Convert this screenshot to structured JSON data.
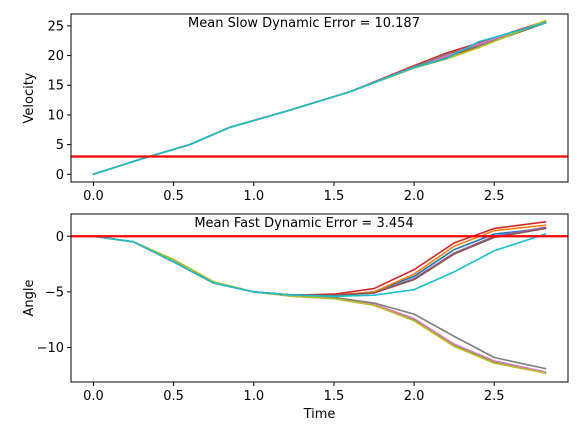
{
  "chart_data": [
    {
      "type": "line",
      "annotation": "Mean Slow Dynamic Error = 10.187",
      "xlabel": "",
      "ylabel": "Velocity",
      "xlim": [
        -0.14,
        2.96
      ],
      "ylim": [
        -1.3,
        27.0
      ],
      "xticks": [
        "0.0",
        "0.5",
        "1.0",
        "1.5",
        "2.0",
        "2.5"
      ],
      "yticks": [
        "0",
        "5",
        "10",
        "15",
        "20",
        "25"
      ],
      "reference_line": {
        "y": 3.0,
        "color": "#ff0000"
      },
      "series": [
        {
          "color": "#1f77b4",
          "x": [
            0,
            0.3,
            0.6,
            0.85,
            1.2,
            1.6,
            2.0,
            2.2,
            2.4,
            2.82
          ],
          "y": [
            0,
            2.6,
            5.0,
            7.9,
            10.6,
            13.9,
            18.0,
            19.6,
            21.7,
            25.6
          ]
        },
        {
          "color": "#ff7f0e",
          "x": [
            0,
            0.3,
            0.6,
            0.85,
            1.2,
            1.6,
            2.0,
            2.2,
            2.4,
            2.82
          ],
          "y": [
            0,
            2.6,
            5.0,
            7.9,
            10.6,
            13.9,
            17.9,
            19.5,
            21.4,
            25.7
          ]
        },
        {
          "color": "#2ca02c",
          "x": [
            0,
            0.3,
            0.6,
            0.85,
            1.2,
            1.6,
            2.0,
            2.2,
            2.4,
            2.82
          ],
          "y": [
            0,
            2.6,
            5.0,
            7.9,
            10.6,
            13.9,
            18.2,
            20.1,
            21.5,
            25.5
          ]
        },
        {
          "color": "#d62728",
          "x": [
            0,
            0.3,
            0.6,
            0.85,
            1.2,
            1.6,
            2.0,
            2.2,
            2.4,
            2.82
          ],
          "y": [
            0,
            2.6,
            5.0,
            7.9,
            10.6,
            13.9,
            18.3,
            20.4,
            22.1,
            25.8
          ]
        },
        {
          "color": "#9467bd",
          "x": [
            0,
            0.3,
            0.6,
            0.85,
            1.2,
            1.6,
            2.0,
            2.2,
            2.4,
            2.82
          ],
          "y": [
            0,
            2.6,
            5.0,
            7.9,
            10.6,
            13.9,
            18.1,
            20.0,
            21.8,
            25.6
          ]
        },
        {
          "color": "#8c564b",
          "x": [
            0,
            0.3,
            0.6,
            0.85,
            1.2,
            1.6,
            2.0,
            2.2,
            2.4,
            2.82
          ],
          "y": [
            0,
            2.6,
            5.0,
            7.9,
            10.6,
            13.9,
            18.0,
            19.8,
            21.6,
            25.5
          ]
        },
        {
          "color": "#e377c2",
          "x": [
            0,
            0.3,
            0.6,
            0.85,
            1.2,
            1.6,
            2.0,
            2.2,
            2.4,
            2.82
          ],
          "y": [
            0,
            2.6,
            5.0,
            7.9,
            10.6,
            13.9,
            18.1,
            19.9,
            21.9,
            25.7
          ]
        },
        {
          "color": "#7f7f7f",
          "x": [
            0,
            0.3,
            0.6,
            0.85,
            1.2,
            1.6,
            2.0,
            2.2,
            2.4,
            2.82
          ],
          "y": [
            0,
            2.6,
            5.0,
            7.9,
            10.6,
            13.9,
            18.1,
            20.2,
            21.6,
            25.6
          ]
        },
        {
          "color": "#bcbd22",
          "x": [
            0,
            0.3,
            0.6,
            0.85,
            1.2,
            1.6,
            2.0,
            2.2,
            2.4,
            2.82
          ],
          "y": [
            0,
            2.6,
            5.0,
            7.9,
            10.6,
            13.9,
            17.9,
            19.4,
            21.3,
            25.9
          ]
        },
        {
          "color": "#17becf",
          "x": [
            0,
            0.3,
            0.6,
            0.85,
            1.2,
            1.6,
            2.0,
            2.2,
            2.4,
            2.82
          ],
          "y": [
            0,
            2.6,
            5.0,
            7.9,
            10.6,
            13.9,
            18.0,
            19.5,
            22.3,
            25.5
          ]
        }
      ]
    },
    {
      "type": "line",
      "annotation": "Mean Fast Dynamic Error = 3.454",
      "xlabel": "Time",
      "ylabel": "Angle",
      "xlim": [
        -0.14,
        2.96
      ],
      "ylim": [
        -13.1,
        2.0
      ],
      "xticks": [
        "0.0",
        "0.5",
        "1.0",
        "1.5",
        "2.0",
        "2.5"
      ],
      "yticks": [
        "0",
        "−5",
        "−10"
      ],
      "reference_line": {
        "y": 0.0,
        "color": "#ff0000"
      },
      "series": [
        {
          "color": "#1f77b4",
          "x": [
            0,
            0.25,
            0.5,
            0.75,
            1.0,
            1.25,
            1.5,
            1.75,
            2.0,
            2.25,
            2.5,
            2.82
          ],
          "y": [
            0,
            -0.5,
            -2.3,
            -4.2,
            -5.0,
            -5.3,
            -5.3,
            -5.0,
            -3.6,
            -1.2,
            0.2,
            0.7
          ]
        },
        {
          "color": "#ff7f0e",
          "x": [
            0,
            0.25,
            0.5,
            0.75,
            1.0,
            1.25,
            1.5,
            1.75,
            2.0,
            2.25,
            2.5,
            2.82
          ],
          "y": [
            0,
            -0.5,
            -2.3,
            -4.2,
            -5.0,
            -5.3,
            -5.3,
            -5.0,
            -3.4,
            -0.9,
            0.5,
            1.0
          ]
        },
        {
          "color": "#2ca02c",
          "x": [
            0,
            0.25,
            0.5,
            0.75,
            1.0,
            1.25,
            1.5,
            1.75,
            2.0,
            2.25,
            2.5,
            2.82
          ],
          "y": [
            0,
            -0.5,
            -2.1,
            -4.1,
            -5.0,
            -5.4,
            -5.6,
            -6.2,
            -7.5,
            -9.8,
            -11.3,
            -12.3
          ]
        },
        {
          "color": "#d62728",
          "x": [
            0,
            0.25,
            0.5,
            0.75,
            1.0,
            1.25,
            1.5,
            1.75,
            2.0,
            2.25,
            2.5,
            2.82
          ],
          "y": [
            0,
            -0.5,
            -2.3,
            -4.2,
            -5.0,
            -5.3,
            -5.2,
            -4.7,
            -3.0,
            -0.6,
            0.7,
            1.3
          ]
        },
        {
          "color": "#9467bd",
          "x": [
            0,
            0.25,
            0.5,
            0.75,
            1.0,
            1.25,
            1.5,
            1.75,
            2.0,
            2.25,
            2.5,
            2.82
          ],
          "y": [
            0,
            -0.5,
            -2.3,
            -4.2,
            -5.0,
            -5.3,
            -5.3,
            -5.1,
            -3.8,
            -1.5,
            0.0,
            0.8
          ]
        },
        {
          "color": "#8c564b",
          "x": [
            0,
            0.25,
            0.5,
            0.75,
            1.0,
            1.25,
            1.5,
            1.75,
            2.0,
            2.25,
            2.5,
            2.82
          ],
          "y": [
            0,
            -0.5,
            -2.3,
            -4.2,
            -5.0,
            -5.3,
            -5.3,
            -5.1,
            -3.9,
            -1.6,
            -0.1,
            0.7
          ]
        },
        {
          "color": "#e377c2",
          "x": [
            0,
            0.25,
            0.5,
            0.75,
            1.0,
            1.25,
            1.5,
            1.75,
            2.0,
            2.25,
            2.5,
            2.82
          ],
          "y": [
            0,
            -0.5,
            -2.3,
            -4.2,
            -5.0,
            -5.4,
            -5.6,
            -6.1,
            -7.4,
            -9.7,
            -11.2,
            -12.2
          ]
        },
        {
          "color": "#7f7f7f",
          "x": [
            0,
            0.25,
            0.5,
            0.75,
            1.0,
            1.25,
            1.5,
            1.75,
            2.0,
            2.25,
            2.5,
            2.82
          ],
          "y": [
            0,
            -0.5,
            -2.3,
            -4.2,
            -5.0,
            -5.4,
            -5.5,
            -6.0,
            -7.0,
            -9.0,
            -10.9,
            -11.9
          ]
        },
        {
          "color": "#bcbd22",
          "x": [
            0,
            0.25,
            0.5,
            0.75,
            1.0,
            1.25,
            1.5,
            1.75,
            2.0,
            2.25,
            2.5,
            2.82
          ],
          "y": [
            0,
            -0.5,
            -2.1,
            -4.1,
            -5.0,
            -5.4,
            -5.6,
            -6.2,
            -7.6,
            -9.9,
            -11.4,
            -12.3
          ]
        },
        {
          "color": "#17becf",
          "x": [
            0,
            0.25,
            0.5,
            0.75,
            1.0,
            1.25,
            1.5,
            1.75,
            2.0,
            2.25,
            2.5,
            2.82
          ],
          "y": [
            0,
            -0.5,
            -2.3,
            -4.2,
            -5.0,
            -5.3,
            -5.4,
            -5.3,
            -4.8,
            -3.2,
            -1.3,
            0.2
          ]
        }
      ]
    }
  ]
}
